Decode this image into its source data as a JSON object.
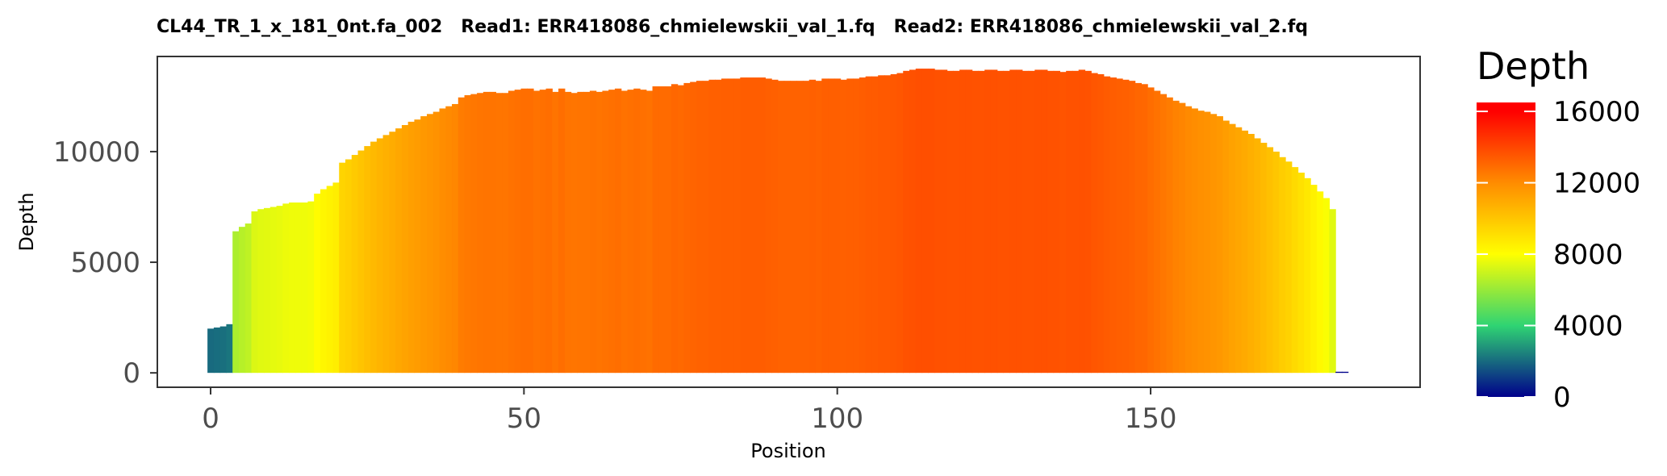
{
  "chart_data": {
    "type": "bar",
    "title": "CL44_TR_1_x_181_0nt.fa_002   Read1: ERR418086_chmielewskii_val_1.fq   Read2: ERR418086_chmielewskii_val_2.fq",
    "xlabel": "Position",
    "ylabel": "Depth",
    "xlim": [
      -8.5,
      193
    ],
    "ylim": [
      -650,
      14300
    ],
    "x_ticks": [
      0,
      50,
      100,
      150
    ],
    "y_ticks": [
      0,
      5000,
      10000
    ],
    "grid": false,
    "legend": {
      "title": "Depth",
      "position": "right",
      "type": "colorbar",
      "range": [
        0,
        16500
      ],
      "ticks": [
        0,
        4000,
        8000,
        12000,
        16000
      ],
      "color_stops": [
        {
          "value": 0,
          "color": "#00008b"
        },
        {
          "value": 4000,
          "color": "#2fd473"
        },
        {
          "value": 8000,
          "color": "#ffff00"
        },
        {
          "value": 12000,
          "color": "#ff8c00"
        },
        {
          "value": 16000,
          "color": "#ff0000"
        }
      ]
    },
    "x_start": 0,
    "values": [
      2000,
      2050,
      2100,
      2200,
      6400,
      6600,
      6750,
      7300,
      7400,
      7450,
      7500,
      7550,
      7650,
      7700,
      7700,
      7700,
      7750,
      8100,
      8300,
      8450,
      8600,
      9500,
      9650,
      9850,
      10050,
      10250,
      10450,
      10600,
      10750,
      10900,
      11050,
      11200,
      11350,
      11450,
      11600,
      11700,
      11800,
      11950,
      12050,
      12150,
      12450,
      12550,
      12600,
      12650,
      12700,
      12700,
      12650,
      12650,
      12750,
      12800,
      12850,
      12850,
      12750,
      12800,
      12850,
      12700,
      12850,
      12700,
      12650,
      12700,
      12700,
      12750,
      12700,
      12750,
      12800,
      12850,
      12750,
      12800,
      12850,
      12800,
      12750,
      12950,
      12950,
      12950,
      13050,
      13000,
      13100,
      13150,
      13200,
      13200,
      13250,
      13250,
      13300,
      13300,
      13300,
      13350,
      13350,
      13350,
      13350,
      13300,
      13250,
      13200,
      13200,
      13200,
      13200,
      13200,
      13250,
      13200,
      13300,
      13300,
      13300,
      13250,
      13300,
      13300,
      13350,
      13400,
      13400,
      13450,
      13450,
      13500,
      13550,
      13650,
      13700,
      13750,
      13750,
      13750,
      13700,
      13700,
      13650,
      13650,
      13700,
      13700,
      13650,
      13650,
      13700,
      13700,
      13650,
      13650,
      13700,
      13700,
      13650,
      13650,
      13700,
      13700,
      13650,
      13650,
      13600,
      13650,
      13650,
      13700,
      13650,
      13550,
      13500,
      13400,
      13350,
      13300,
      13250,
      13200,
      13100,
      13050,
      12900,
      12750,
      12600,
      12450,
      12300,
      12200,
      12050,
      11950,
      11850,
      11800,
      11700,
      11600,
      11400,
      11250,
      11100,
      10950,
      10800,
      10600,
      10400,
      10200,
      10000,
      9750,
      9550,
      9300,
      9050,
      8800,
      8500,
      8200,
      7900,
      7400,
      50,
      50
    ]
  }
}
